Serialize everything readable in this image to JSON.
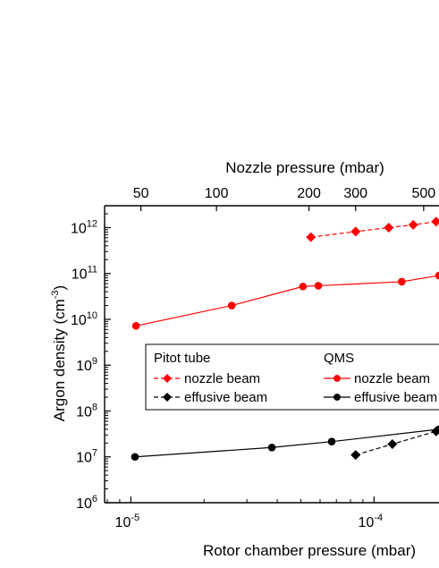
{
  "chart_data": {
    "type": "line",
    "title": "",
    "xlabel": "Rotor chamber pressure (mbar)",
    "ylabel_main": "Argon density (cm",
    "ylabel_sup": "-3",
    "ylabel_close": ")",
    "top_xlabel": "Nozzle pressure (mbar)",
    "xscale": "log",
    "yscale": "log",
    "xlim": [
      7.8e-06,
      0.000185
    ],
    "ylim": [
      1000000.0,
      3000000000000.0
    ],
    "grid": false,
    "bottom_ticks": [
      {
        "value": 1e-05,
        "base": "10",
        "exp": "-5"
      },
      {
        "value": 0.0001,
        "base": "10",
        "exp": "-4"
      }
    ],
    "left_ticks": [
      {
        "value": 1000000.0,
        "base": "10",
        "exp": "6"
      },
      {
        "value": 10000000.0,
        "base": "10",
        "exp": "7"
      },
      {
        "value": 100000000.0,
        "base": "10",
        "exp": "8"
      },
      {
        "value": 1000000000.0,
        "base": "10",
        "exp": "9"
      },
      {
        "value": 10000000000.0,
        "base": "10",
        "exp": "10"
      },
      {
        "value": 100000000000.0,
        "base": "10",
        "exp": "11"
      },
      {
        "value": 1000000000000.0,
        "base": "10",
        "exp": "12"
      }
    ],
    "top_ticks": [
      {
        "label": "50",
        "x": 1.1e-05
      },
      {
        "label": "100",
        "x": 2.25e-05
      },
      {
        "label": "200",
        "x": 5.4e-05
      },
      {
        "label": "300",
        "x": 8.4e-05
      },
      {
        "label": "500",
        "x": 0.00016
      }
    ],
    "legend": {
      "placement": "center-right",
      "group_titles": [
        "Pitot tube",
        "QMS"
      ]
    },
    "series": [
      {
        "name": "nozzle beam",
        "group": "Pitot tube",
        "color": "#ff0000",
        "marker": "diamond",
        "dash": "dashed",
        "x": [
          5.5e-05,
          8.4e-05,
          0.000115,
          0.000145,
          0.00018
        ],
        "y": [
          620000000000.0,
          820000000000.0,
          1000000000000.0,
          1150000000000.0,
          1350000000000.0
        ]
      },
      {
        "name": "effusive beam",
        "group": "Pitot tube",
        "color": "#000000",
        "marker": "diamond",
        "dash": "dashed",
        "x": [
          8.4e-05,
          0.000119,
          0.00018
        ],
        "y": [
          11000000.0,
          19000000.0,
          36000000.0
        ]
      },
      {
        "name": "nozzle beam",
        "group": "QMS",
        "color": "#ff0000",
        "marker": "circle",
        "dash": "solid",
        "x": [
          1.05e-05,
          2.6e-05,
          5.1e-05,
          5.9e-05,
          0.00013,
          0.000185
        ],
        "y": [
          7200000000.0,
          20000000000.0,
          52000000000.0,
          54000000000.0,
          66000000000.0,
          90000000000.0
        ]
      },
      {
        "name": "effusive beam",
        "group": "QMS",
        "color": "#000000",
        "marker": "circle",
        "dash": "solid",
        "x": [
          1.04e-05,
          3.8e-05,
          6.7e-05,
          0.000185
        ],
        "y": [
          10000000.0,
          16000000.0,
          21500000.0,
          40000000.0
        ]
      }
    ]
  }
}
